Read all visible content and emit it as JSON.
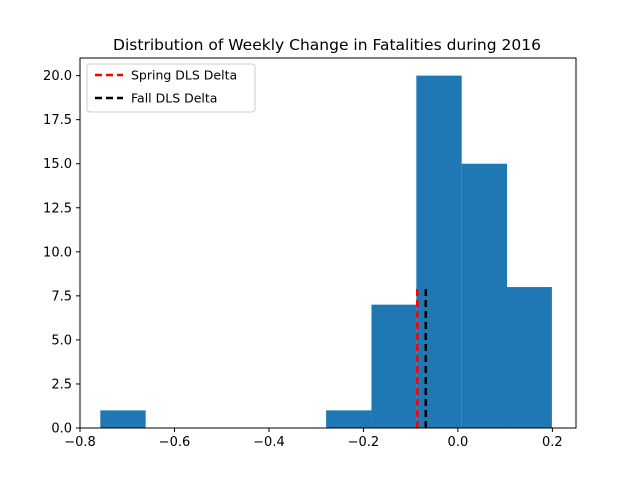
{
  "chart_data": {
    "type": "bar",
    "title": "Distribution of Weekly Change in Fatalities during 2016",
    "xlabel": "",
    "ylabel": "",
    "xlim": [
      -0.8,
      0.25
    ],
    "ylim": [
      0,
      21
    ],
    "x_ticks": [
      -0.8,
      -0.6,
      -0.4,
      -0.2,
      0.0,
      0.2
    ],
    "x_tick_labels": [
      "−0.8",
      "−0.6",
      "−0.4",
      "−0.2",
      "0.0",
      "0.2"
    ],
    "y_ticks": [
      0,
      2.5,
      5,
      7.5,
      10,
      12.5,
      15,
      17.5,
      20
    ],
    "y_tick_labels": [
      "0.0",
      "2.5",
      "5.0",
      "7.5",
      "10.0",
      "12.5",
      "15.0",
      "17.5",
      "20.0"
    ],
    "bin_edges": [
      -0.757,
      -0.661,
      -0.566,
      -0.47,
      -0.374,
      -0.279,
      -0.183,
      -0.088,
      0.008,
      0.104,
      0.199
    ],
    "counts": [
      1,
      0,
      0,
      0,
      0,
      1,
      7,
      20,
      15,
      8
    ],
    "bar_color": "#1f77b4",
    "vlines": [
      {
        "name": "Spring DLS Delta",
        "x": -0.086,
        "ymin": 0,
        "ymax": 8,
        "color": "#ff0000",
        "style": "dashed"
      },
      {
        "name": "Fall DLS Delta",
        "x": -0.068,
        "ymin": 0,
        "ymax": 8,
        "color": "#000000",
        "style": "dashed"
      }
    ],
    "legend": {
      "placement": "upper-left",
      "entries": [
        "Spring DLS Delta",
        "Fall DLS Delta"
      ]
    },
    "grid": false
  }
}
